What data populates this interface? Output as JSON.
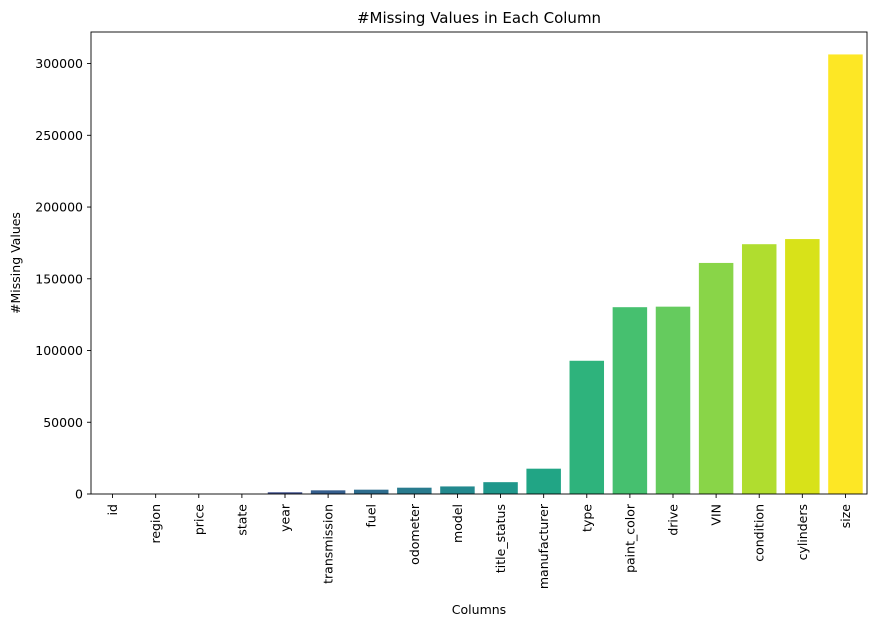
{
  "chart_data": {
    "type": "bar",
    "title": "#Missing Values in Each Column",
    "xlabel": "Columns",
    "ylabel": "#Missing Values",
    "ylim": [
      0,
      322000
    ],
    "yticks": [
      0,
      50000,
      100000,
      150000,
      200000,
      250000,
      300000
    ],
    "ytick_labels": [
      "0",
      "50000",
      "100000",
      "150000",
      "200000",
      "250000",
      "300000"
    ],
    "grid": false,
    "legend": "none",
    "palette": "viridis",
    "categories": [
      "id",
      "region",
      "price",
      "state",
      "year",
      "transmission",
      "fuel",
      "odometer",
      "model",
      "title_status",
      "manufacturer",
      "type",
      "paint_color",
      "drive",
      "VIN",
      "condition",
      "cylinders",
      "size"
    ],
    "values": [
      0,
      0,
      0,
      0,
      1205,
      2556,
      3013,
      4400,
      5277,
      8242,
      17646,
      92858,
      130203,
      130567,
      161042,
      174104,
      177678,
      306361
    ],
    "colors": [
      "#440154",
      "#481769",
      "#472a7a",
      "#433d84",
      "#3d4e8a",
      "#355e8d",
      "#2e6d8e",
      "#297b8e",
      "#23898e",
      "#1f978b",
      "#21a585",
      "#2eb37c",
      "#46c06f",
      "#65cb5e",
      "#89d548",
      "#b0dd2f",
      "#d8e219",
      "#fde725"
    ]
  }
}
